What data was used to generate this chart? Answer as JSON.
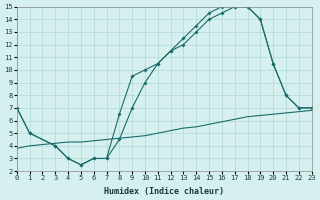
{
  "xlabel": "Humidex (Indice chaleur)",
  "bg_color": "#d6f0f0",
  "grid_color": "#b0d8d8",
  "line_color": "#1a6b6b",
  "xlim": [
    0,
    23
  ],
  "ylim": [
    2,
    15
  ],
  "xticks": [
    0,
    1,
    2,
    3,
    4,
    5,
    6,
    7,
    8,
    9,
    10,
    11,
    12,
    13,
    14,
    15,
    16,
    17,
    18,
    19,
    20,
    21,
    22,
    23
  ],
  "yticks": [
    2,
    3,
    4,
    5,
    6,
    7,
    8,
    9,
    10,
    11,
    12,
    13,
    14,
    15
  ],
  "line1_x": [
    0,
    1,
    3,
    4,
    5,
    6,
    7,
    8,
    9,
    10,
    11,
    12,
    13,
    14,
    15,
    16,
    17,
    18,
    19,
    20,
    21,
    22,
    23
  ],
  "line1_y": [
    7,
    5,
    4,
    3,
    2.5,
    3,
    3,
    6.5,
    9.5,
    10,
    10.5,
    11.5,
    12,
    13,
    14,
    14.5,
    15,
    15,
    14,
    10.5,
    8,
    7,
    7
  ],
  "line2_x": [
    0,
    1,
    3,
    4,
    5,
    6,
    7,
    8,
    9,
    10,
    11,
    12,
    13,
    14,
    15,
    16,
    17,
    18,
    19,
    20,
    21,
    22,
    23
  ],
  "line2_y": [
    7,
    5,
    4,
    3,
    2.5,
    3,
    3,
    4.5,
    7,
    9,
    10.5,
    11.5,
    12.5,
    13.5,
    14.5,
    15,
    15,
    15,
    14,
    10.5,
    8,
    7,
    7
  ],
  "line3_x": [
    0,
    1,
    2,
    3,
    4,
    5,
    6,
    7,
    8,
    9,
    10,
    11,
    12,
    13,
    14,
    15,
    16,
    17,
    18,
    19,
    20,
    21,
    22,
    23
  ],
  "line3_y": [
    3.8,
    4.0,
    4.1,
    4.2,
    4.3,
    4.3,
    4.4,
    4.5,
    4.6,
    4.7,
    4.8,
    5.0,
    5.2,
    5.4,
    5.5,
    5.7,
    5.9,
    6.1,
    6.3,
    6.4,
    6.5,
    6.6,
    6.7,
    6.8
  ]
}
